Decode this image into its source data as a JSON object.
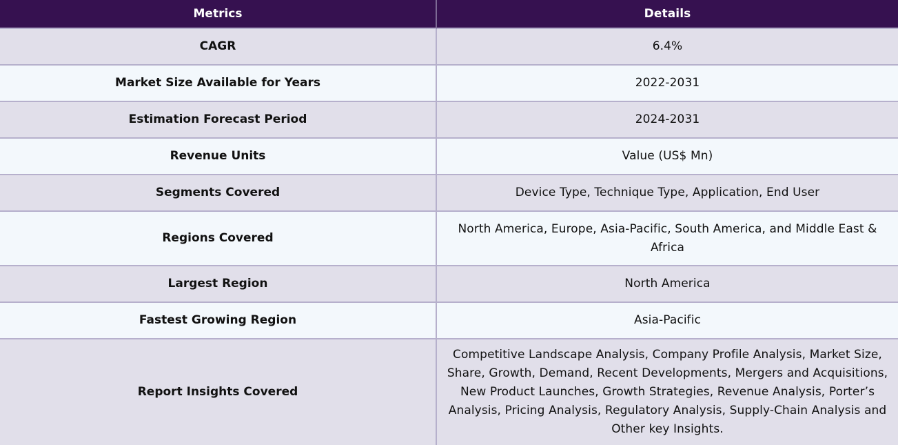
{
  "table": {
    "headers": [
      "Metrics",
      "Details"
    ],
    "rows": [
      {
        "metric": "CAGR",
        "detail": "6.4%"
      },
      {
        "metric": "Market Size Available for Years",
        "detail": "2022-2031"
      },
      {
        "metric": "Estimation Forecast Period",
        "detail": "2024-2031"
      },
      {
        "metric": "Revenue Units",
        "detail": "Value (US$ Mn)"
      },
      {
        "metric": "Segments Covered",
        "detail": "Device Type, Technique Type, Application, End User"
      },
      {
        "metric": "Regions Covered",
        "detail": "North America, Europe, Asia-Pacific, South America, and Middle East & Africa"
      },
      {
        "metric": "Largest Region",
        "detail": "North America"
      },
      {
        "metric": "Fastest Growing Region",
        "detail": "Asia-Pacific"
      },
      {
        "metric": "Report Insights Covered",
        "detail": "Competitive Landscape Analysis, Company Profile Analysis, Market Size, Share, Growth, Demand, Recent Developments, Mergers and Acquisitions, New Product Launches, Growth Strategies, Revenue Analysis, Porter’s Analysis, Pricing Analysis, Regulatory Analysis, Supply-Chain Analysis and Other key Insights."
      }
    ]
  },
  "colors": {
    "header_bg": "#361150",
    "header_text": "#ffffff",
    "row_odd_bg": "#e1dfea",
    "row_even_bg": "#f3f8fc",
    "border": "#b6b0cc"
  }
}
